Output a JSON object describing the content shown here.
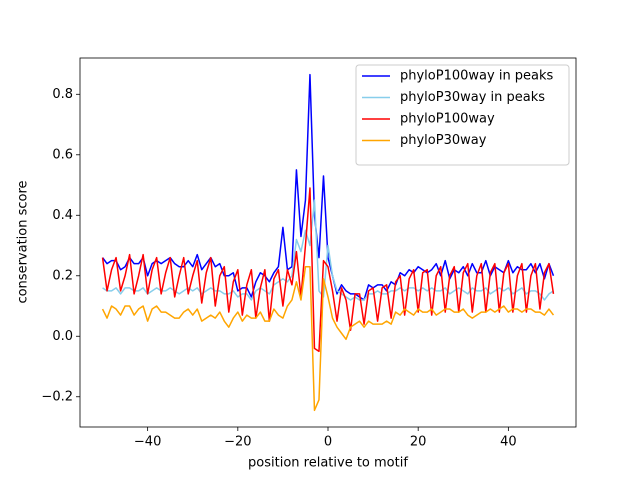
{
  "chart_data": {
    "type": "line",
    "xlabel": "position relative to motif",
    "ylabel": "conservation score",
    "x": [
      -50,
      -49,
      -48,
      -47,
      -46,
      -45,
      -44,
      -43,
      -42,
      -41,
      -40,
      -39,
      -38,
      -37,
      -36,
      -35,
      -34,
      -33,
      -32,
      -31,
      -30,
      -29,
      -28,
      -27,
      -26,
      -25,
      -24,
      -23,
      -22,
      -21,
      -20,
      -19,
      -18,
      -17,
      -16,
      -15,
      -14,
      -13,
      -12,
      -11,
      -10,
      -9,
      -8,
      -7,
      -6,
      -5,
      -4,
      -3,
      -2,
      -1,
      0,
      1,
      2,
      3,
      4,
      5,
      6,
      7,
      8,
      9,
      10,
      11,
      12,
      13,
      14,
      15,
      16,
      17,
      18,
      19,
      20,
      21,
      22,
      23,
      24,
      25,
      26,
      27,
      28,
      29,
      30,
      31,
      32,
      33,
      34,
      35,
      36,
      37,
      38,
      39,
      40,
      41,
      42,
      43,
      44,
      45,
      46,
      47,
      48,
      49,
      50
    ],
    "series": [
      {
        "name": "phyloP100way in peaks",
        "color": "#0000ff",
        "values": [
          0.26,
          0.24,
          0.25,
          0.25,
          0.22,
          0.23,
          0.26,
          0.24,
          0.24,
          0.26,
          0.2,
          0.24,
          0.25,
          0.24,
          0.25,
          0.26,
          0.24,
          0.23,
          0.23,
          0.25,
          0.23,
          0.27,
          0.22,
          0.24,
          0.26,
          0.23,
          0.24,
          0.2,
          0.2,
          0.21,
          0.15,
          0.16,
          0.16,
          0.13,
          0.18,
          0.21,
          0.2,
          0.18,
          0.21,
          0.23,
          0.36,
          0.22,
          0.23,
          0.55,
          0.33,
          0.45,
          0.865,
          0.4,
          0.26,
          0.53,
          0.26,
          0.2,
          0.14,
          0.17,
          0.15,
          0.14,
          0.14,
          0.13,
          0.12,
          0.17,
          0.16,
          0.17,
          0.17,
          0.15,
          0.18,
          0.17,
          0.21,
          0.2,
          0.22,
          0.21,
          0.23,
          0.22,
          0.21,
          0.22,
          0.24,
          0.2,
          0.25,
          0.19,
          0.22,
          0.21,
          0.23,
          0.2,
          0.24,
          0.21,
          0.21,
          0.25,
          0.2,
          0.23,
          0.22,
          0.21,
          0.25,
          0.21,
          0.23,
          0.22,
          0.22,
          0.24,
          0.21,
          0.24,
          0.19,
          0.24,
          0.2
        ]
      },
      {
        "name": "phyloP30way in peaks",
        "color": "#87ceeb",
        "values": [
          0.16,
          0.15,
          0.15,
          0.16,
          0.14,
          0.16,
          0.16,
          0.15,
          0.15,
          0.16,
          0.14,
          0.15,
          0.16,
          0.15,
          0.15,
          0.16,
          0.15,
          0.14,
          0.15,
          0.16,
          0.15,
          0.16,
          0.14,
          0.15,
          0.16,
          0.15,
          0.15,
          0.14,
          0.14,
          0.15,
          0.13,
          0.14,
          0.14,
          0.12,
          0.15,
          0.16,
          0.15,
          0.14,
          0.17,
          0.18,
          0.19,
          0.18,
          0.2,
          0.32,
          0.28,
          0.35,
          0.3,
          0.45,
          0.15,
          0.13,
          0.3,
          0.2,
          0.15,
          0.14,
          0.13,
          0.12,
          0.13,
          0.12,
          0.12,
          0.14,
          0.14,
          0.15,
          0.14,
          0.14,
          0.15,
          0.15,
          0.16,
          0.15,
          0.16,
          0.16,
          0.15,
          0.16,
          0.15,
          0.16,
          0.15,
          0.15,
          0.16,
          0.14,
          0.15,
          0.16,
          0.15,
          0.14,
          0.16,
          0.15,
          0.15,
          0.16,
          0.14,
          0.15,
          0.16,
          0.15,
          0.16,
          0.14,
          0.15,
          0.16,
          0.14,
          0.15,
          0.15,
          0.14,
          0.12,
          0.14,
          0.15
        ]
      },
      {
        "name": "phyloP100way",
        "color": "#ff0000",
        "values": [
          0.26,
          0.15,
          0.22,
          0.26,
          0.15,
          0.2,
          0.27,
          0.14,
          0.2,
          0.27,
          0.14,
          0.22,
          0.26,
          0.14,
          0.21,
          0.26,
          0.13,
          0.2,
          0.26,
          0.14,
          0.2,
          0.25,
          0.11,
          0.21,
          0.26,
          0.1,
          0.2,
          0.23,
          0.08,
          0.18,
          0.22,
          0.07,
          0.17,
          0.22,
          0.06,
          0.16,
          0.22,
          0.05,
          0.19,
          0.22,
          0.1,
          0.22,
          0.17,
          0.28,
          0.13,
          0.3,
          0.49,
          -0.04,
          -0.05,
          0.25,
          0.23,
          0.15,
          0.05,
          0.16,
          0.12,
          0.02,
          0.14,
          0.14,
          0.04,
          0.15,
          0.16,
          0.05,
          0.16,
          0.17,
          0.06,
          0.18,
          0.2,
          0.07,
          0.19,
          0.22,
          0.08,
          0.21,
          0.22,
          0.07,
          0.2,
          0.23,
          0.08,
          0.2,
          0.23,
          0.08,
          0.21,
          0.24,
          0.08,
          0.2,
          0.24,
          0.08,
          0.21,
          0.24,
          0.08,
          0.21,
          0.24,
          0.08,
          0.2,
          0.24,
          0.08,
          0.2,
          0.24,
          0.09,
          0.21,
          0.24,
          0.14
        ]
      },
      {
        "name": "phyloP30way",
        "color": "#ffa500",
        "values": [
          0.09,
          0.06,
          0.1,
          0.09,
          0.07,
          0.1,
          0.1,
          0.07,
          0.09,
          0.1,
          0.05,
          0.09,
          0.1,
          0.08,
          0.08,
          0.07,
          0.06,
          0.06,
          0.08,
          0.09,
          0.07,
          0.09,
          0.05,
          0.06,
          0.07,
          0.06,
          0.08,
          0.05,
          0.03,
          0.06,
          0.08,
          0.05,
          0.07,
          0.06,
          0.06,
          0.08,
          0.05,
          0.05,
          0.09,
          0.07,
          0.06,
          0.1,
          0.12,
          0.18,
          0.12,
          0.23,
          0.23,
          -0.245,
          -0.21,
          0.19,
          0.13,
          0.06,
          0.03,
          0.01,
          -0.01,
          0.03,
          0.04,
          0.05,
          0.03,
          0.05,
          0.04,
          0.04,
          0.04,
          0.05,
          0.04,
          0.08,
          0.07,
          0.09,
          0.08,
          0.07,
          0.09,
          0.08,
          0.08,
          0.09,
          0.07,
          0.08,
          0.09,
          0.09,
          0.08,
          0.08,
          0.09,
          0.07,
          0.06,
          0.07,
          0.08,
          0.08,
          0.09,
          0.08,
          0.09,
          0.1,
          0.08,
          0.09,
          0.09,
          0.08,
          0.09,
          0.09,
          0.08,
          0.08,
          0.07,
          0.09,
          0.07
        ]
      }
    ],
    "xlim": [
      -55,
      55
    ],
    "ylim": [
      -0.3,
      0.92
    ],
    "xticks": [
      {
        "value": -40,
        "label": "−40"
      },
      {
        "value": -20,
        "label": "−20"
      },
      0,
      20,
      40
    ],
    "yticks": [
      {
        "value": -0.2,
        "label": "−0.2"
      },
      {
        "value": 0,
        "label": "0.0"
      },
      0.2,
      0.4,
      0.6,
      0.8
    ],
    "legend": "upper right",
    "grid": false
  }
}
